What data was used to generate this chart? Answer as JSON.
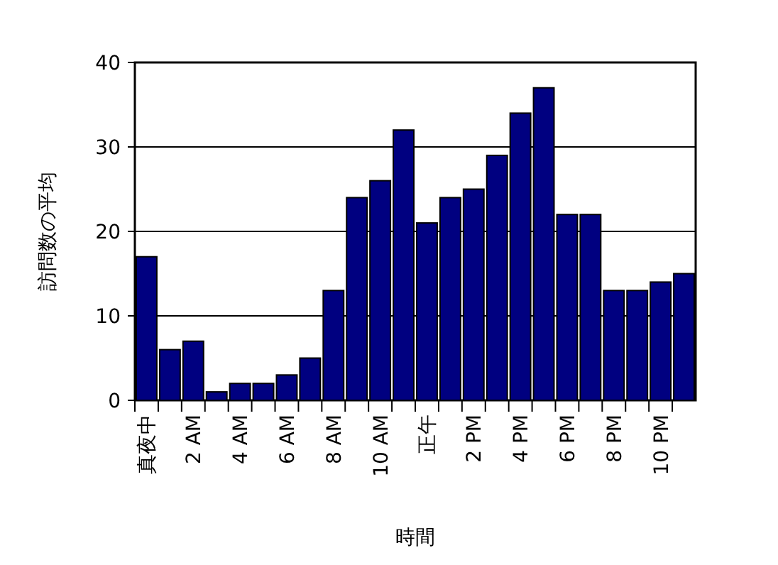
{
  "chart_data": {
    "type": "bar",
    "xlabel": "時間",
    "ylabel": "訪問数の平均",
    "categories": [
      "真夜中",
      null,
      "2 AM",
      null,
      "4 AM",
      null,
      "6 AM",
      null,
      "8 AM",
      null,
      "10 AM",
      null,
      "正午",
      null,
      "2 PM",
      null,
      "4 PM",
      null,
      "6 PM",
      null,
      "8 PM",
      null,
      "10 PM",
      null
    ],
    "values": [
      17,
      6,
      7,
      1,
      2,
      2,
      3,
      5,
      13,
      24,
      26,
      32,
      21,
      24,
      25,
      29,
      34,
      37,
      22,
      22,
      13,
      13,
      14,
      15
    ],
    "color": "#000080",
    "ylim": [
      0,
      40
    ],
    "yticks": [
      0,
      10,
      20,
      30,
      40
    ],
    "grid": "y"
  }
}
